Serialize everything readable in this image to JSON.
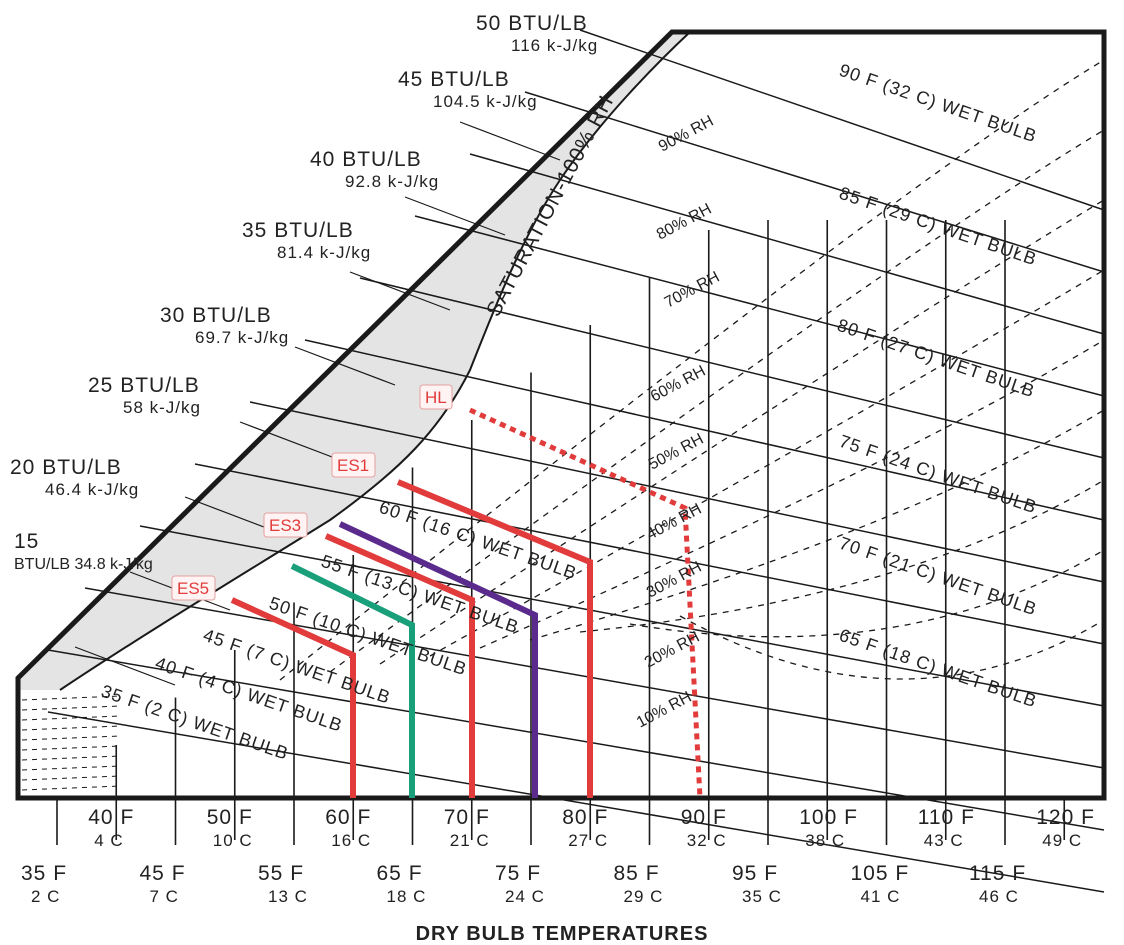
{
  "chart_data": {
    "type": "psychrometric",
    "xlabel": "DRY BULB TEMPERATURES",
    "x_range_f": [
      30,
      121
    ],
    "x_ticks_upper": [
      {
        "f": 40,
        "f_label": "40 F",
        "c_label": "4 C"
      },
      {
        "f": 50,
        "f_label": "50 F",
        "c_label": "10 C"
      },
      {
        "f": 60,
        "f_label": "60 F",
        "c_label": "16 C"
      },
      {
        "f": 70,
        "f_label": "70 F",
        "c_label": "21 C"
      },
      {
        "f": 80,
        "f_label": "80 F",
        "c_label": "27 C"
      },
      {
        "f": 90,
        "f_label": "90 F",
        "c_label": "32 C"
      },
      {
        "f": 100,
        "f_label": "100 F",
        "c_label": "38 C"
      },
      {
        "f": 110,
        "f_label": "110 F",
        "c_label": "43 C"
      },
      {
        "f": 120,
        "f_label": "120 F",
        "c_label": "49 C"
      }
    ],
    "x_ticks_lower": [
      {
        "f": 35,
        "f_label": "35 F",
        "c_label": "2 C"
      },
      {
        "f": 45,
        "f_label": "45 F",
        "c_label": "7 C"
      },
      {
        "f": 55,
        "f_label": "55 F",
        "c_label": "13 C"
      },
      {
        "f": 65,
        "f_label": "65 F",
        "c_label": "18 C"
      },
      {
        "f": 75,
        "f_label": "75 F",
        "c_label": "24 C"
      },
      {
        "f": 85,
        "f_label": "85 F",
        "c_label": "29 C"
      },
      {
        "f": 95,
        "f_label": "95 F",
        "c_label": "35 C"
      },
      {
        "f": 105,
        "f_label": "105 F",
        "c_label": "41 C"
      },
      {
        "f": 115,
        "f_label": "115 F",
        "c_label": "46 C"
      }
    ],
    "saturation_label": "SATURATION-100% RH",
    "enthalpy_lines": [
      {
        "btu": "50 BTU/LB",
        "kj": "116 k-J/kg"
      },
      {
        "btu": "45 BTU/LB",
        "kj": "104.5 k-J/kg"
      },
      {
        "btu": "40 BTU/LB",
        "kj": "92.8 k-J/kg"
      },
      {
        "btu": "35 BTU/LB",
        "kj": "81.4 k-J/kg"
      },
      {
        "btu": "30 BTU/LB",
        "kj": "69.7 k-J/kg"
      },
      {
        "btu": "25 BTU/LB",
        "kj": "58 k-J/kg"
      },
      {
        "btu": "20 BTU/LB",
        "kj": "46.4 k-J/kg"
      },
      {
        "btu": "15",
        "kj": "BTU/LB 34.8 k-J/kg"
      }
    ],
    "wet_bulb_lines": [
      {
        "f": 90,
        "label": "90 F (32 C) WET BULB"
      },
      {
        "f": 85,
        "label": "85 F (29 C) WET BULB"
      },
      {
        "f": 80,
        "label": "80 F (27 C) WET BULB"
      },
      {
        "f": 75,
        "label": "75 F (24 C) WET BULB"
      },
      {
        "f": 70,
        "label": "70 F (21 C) WET BULB"
      },
      {
        "f": 65,
        "label": "65 F (18 C) WET BULB"
      },
      {
        "f": 60,
        "label": "60 F (16 C) WET BULB"
      },
      {
        "f": 55,
        "label": "55 F (13 C) WET BULB"
      },
      {
        "f": 50,
        "label": "50 F (10 C) WET BULB"
      },
      {
        "f": 45,
        "label": "45 F (7 C) WET BULB"
      },
      {
        "f": 40,
        "label": "40 F (4 C) WET BULB"
      },
      {
        "f": 35,
        "label": "35 F (2 C) WET BULB"
      }
    ],
    "rh_lines": [
      {
        "rh": 90,
        "label": "90% RH"
      },
      {
        "rh": 80,
        "label": "80% RH"
      },
      {
        "rh": 70,
        "label": "70% RH"
      },
      {
        "rh": 60,
        "label": "60% RH"
      },
      {
        "rh": 50,
        "label": "50% RH"
      },
      {
        "rh": 40,
        "label": "40% RH"
      },
      {
        "rh": 30,
        "label": "30% RH"
      },
      {
        "rh": 20,
        "label": "20% RH"
      },
      {
        "rh": 10,
        "label": "10% RH"
      }
    ],
    "process_paths": [
      {
        "label": "HL",
        "color": "#e23b3b",
        "style": "dotted",
        "start_dry_bulb_f": 64,
        "end_dry_bulb_f": 89
      },
      {
        "label": "ES1",
        "color": "#e23b3b",
        "style": "solid",
        "start_dry_bulb_f": 58,
        "end_dry_bulb_f": 80
      },
      {
        "label": "ES3",
        "color": "#e23b3b",
        "style": "solid",
        "start_dry_bulb_f": 54,
        "end_dry_bulb_f": 70
      },
      {
        "label": "",
        "color": "#5a2a8c",
        "style": "solid",
        "start_dry_bulb_f": 55,
        "end_dry_bulb_f": 75
      },
      {
        "label": "",
        "color": "#19a07a",
        "style": "solid",
        "start_dry_bulb_f": 52,
        "end_dry_bulb_f": 65
      },
      {
        "label": "ES5",
        "color": "#e23b3b",
        "style": "solid",
        "start_dry_bulb_f": 48,
        "end_dry_bulb_f": 60
      }
    ],
    "colors": {
      "saturation_fill": "#e4e4e4",
      "red": "#e23b3b",
      "purple": "#5a2a8c",
      "green": "#19a07a",
      "ink": "#1a1a1a"
    }
  }
}
